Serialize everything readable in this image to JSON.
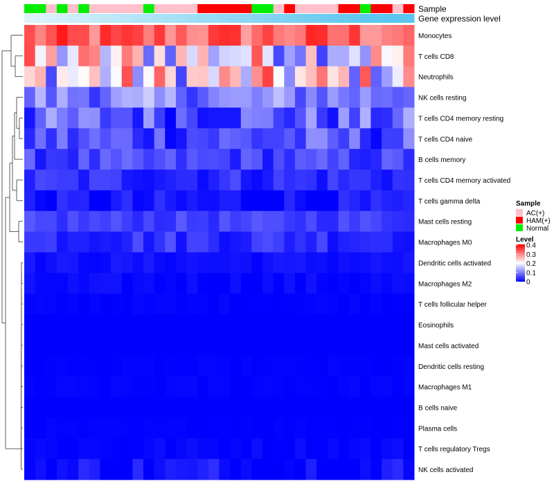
{
  "chart_data": {
    "type": "heatmap",
    "annotation_rows": [
      "Sample",
      "Gene expression level"
    ],
    "sample_groups": [
      "N",
      "N",
      "AC",
      "N",
      "AC",
      "N",
      "AC",
      "AC",
      "AC",
      "AC",
      "AC",
      "N",
      "AC",
      "AC",
      "AC",
      "AC",
      "H",
      "H",
      "H",
      "H",
      "H",
      "N",
      "N",
      "AC",
      "H",
      "AC",
      "AC",
      "AC",
      "AC",
      "H",
      "H",
      "N",
      "H",
      "H",
      "AC",
      "H"
    ],
    "expression_level": [
      0.05,
      0.08,
      0.11,
      0.14,
      0.17,
      0.2,
      0.23,
      0.26,
      0.29,
      0.32,
      0.35,
      0.38,
      0.41,
      0.44,
      0.47,
      0.5,
      0.53,
      0.56,
      0.59,
      0.62,
      0.65,
      0.68,
      0.71,
      0.74,
      0.77,
      0.8,
      0.83,
      0.86,
      0.89,
      0.92,
      0.95,
      0.97,
      0.98,
      0.99,
      1.0,
      1.0
    ],
    "rows": [
      "Monocytes",
      "T cells CD8",
      "Neutrophils",
      "NK cells resting",
      "T cells CD4 memory resting",
      "T cells CD4 naive",
      "B cells memory",
      "T cells CD4 memory activated",
      "T cells gamma delta",
      "Mast cells resting",
      "Macrophages M0",
      "Dendritic cells activated",
      "Macrophages M2",
      "T cells follicular helper",
      "Eosinophils",
      "Mast cells activated",
      "Dendritic cells resting",
      "Macrophages M1",
      "B cells naive",
      "Plasma cells",
      "T cells regulatory  Tregs",
      "NK cells activated"
    ],
    "row_base": [
      0.32,
      0.2,
      0.2,
      0.1,
      0.07,
      0.06,
      0.05,
      0.035,
      0.01,
      0.05,
      0.04,
      0.012,
      0.005,
      0.002,
      0.0,
      0.0,
      0.001,
      0.002,
      0.0,
      0.001,
      0.004,
      0.006
    ],
    "row_spread": [
      0.06,
      0.15,
      0.15,
      0.06,
      0.07,
      0.06,
      0.035,
      0.03,
      0.03,
      0.02,
      0.03,
      0.01,
      0.01,
      0.004,
      0.0,
      0.0,
      0.002,
      0.004,
      0.0,
      0.002,
      0.008,
      0.04
    ],
    "legend": {
      "sample_title": "Sample",
      "sample_items": [
        {
          "key": "AC",
          "label": "AC(+)",
          "color": "#ffc0cb"
        },
        {
          "key": "H",
          "label": "HAM(+)",
          "color": "#ff0000"
        },
        {
          "key": "N",
          "label": "Normal",
          "color": "#00ee00"
        }
      ],
      "level_title": "Level",
      "level_ticks": [
        0.4,
        0.3,
        0.2,
        0.1,
        0
      ],
      "level_range": [
        0,
        0.4
      ]
    },
    "colors": {
      "low": "#0000ff",
      "mid": "#ffffff",
      "high": "#ff0000",
      "expr_low": "#e4f5fb",
      "expr_high": "#5bc6ef"
    }
  }
}
